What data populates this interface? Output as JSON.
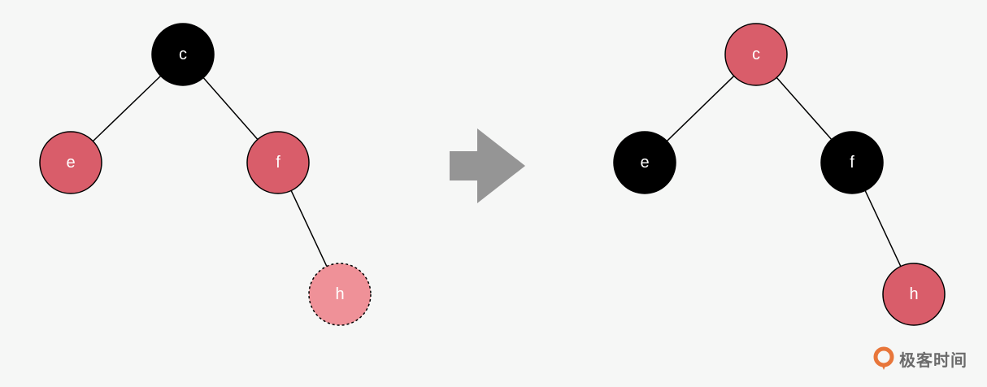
{
  "colors": {
    "background": "#f6f7f6",
    "red": "#d95d6a",
    "light_red": "#ef9198",
    "black": "#000000",
    "arrow": "#959595",
    "logo_orange": "#e8763a",
    "watermark_text": "#6b6b6b"
  },
  "before_tree": {
    "nodes": [
      {
        "id": "c",
        "label": "c",
        "color": "black"
      },
      {
        "id": "e",
        "label": "e",
        "color": "red"
      },
      {
        "id": "f",
        "label": "f",
        "color": "red"
      },
      {
        "id": "h",
        "label": "h",
        "color": "light_red",
        "style": "dashed"
      }
    ],
    "edges": [
      [
        "c",
        "e"
      ],
      [
        "c",
        "f"
      ],
      [
        "f",
        "h"
      ]
    ]
  },
  "after_tree": {
    "nodes": [
      {
        "id": "c",
        "label": "c",
        "color": "red"
      },
      {
        "id": "e",
        "label": "e",
        "color": "black"
      },
      {
        "id": "f",
        "label": "f",
        "color": "black"
      },
      {
        "id": "h",
        "label": "h",
        "color": "red"
      }
    ],
    "edges": [
      [
        "c",
        "e"
      ],
      [
        "c",
        "f"
      ],
      [
        "f",
        "h"
      ]
    ]
  },
  "transition_arrow": {
    "icon": "right-arrow-icon"
  },
  "watermark": {
    "icon": "geektime-logo-icon",
    "text": "极客时间"
  }
}
